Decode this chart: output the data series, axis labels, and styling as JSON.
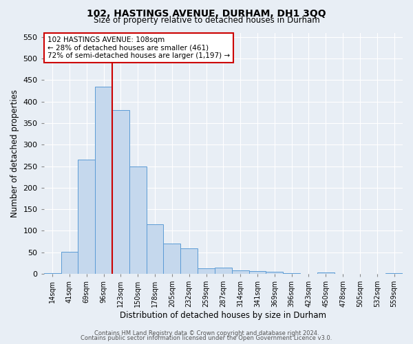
{
  "title": "102, HASTINGS AVENUE, DURHAM, DH1 3QQ",
  "subtitle": "Size of property relative to detached houses in Durham",
  "xlabel": "Distribution of detached houses by size in Durham",
  "ylabel": "Number of detached properties",
  "bar_labels": [
    "14sqm",
    "41sqm",
    "69sqm",
    "96sqm",
    "123sqm",
    "150sqm",
    "178sqm",
    "205sqm",
    "232sqm",
    "259sqm",
    "287sqm",
    "314sqm",
    "341sqm",
    "369sqm",
    "396sqm",
    "423sqm",
    "450sqm",
    "478sqm",
    "505sqm",
    "532sqm",
    "559sqm"
  ],
  "bar_heights": [
    2,
    51,
    265,
    434,
    381,
    250,
    115,
    70,
    59,
    13,
    14,
    8,
    7,
    5,
    2,
    0,
    3,
    0,
    0,
    0,
    2
  ],
  "bar_color": "#c5d8ed",
  "bar_edge_color": "#5b9bd5",
  "vline_x": 4.0,
  "vline_color": "#cc0000",
  "ylim": [
    0,
    560
  ],
  "yticks": [
    0,
    50,
    100,
    150,
    200,
    250,
    300,
    350,
    400,
    450,
    500,
    550
  ],
  "annotation_text": "102 HASTINGS AVENUE: 108sqm\n← 28% of detached houses are smaller (461)\n72% of semi-detached houses are larger (1,197) →",
  "annotation_box_color": "#ffffff",
  "annotation_box_edge": "#cc0000",
  "footer_line1": "Contains HM Land Registry data © Crown copyright and database right 2024.",
  "footer_line2": "Contains public sector information licensed under the Open Government Licence v3.0.",
  "background_color": "#e8eef5",
  "grid_color": "#ffffff"
}
